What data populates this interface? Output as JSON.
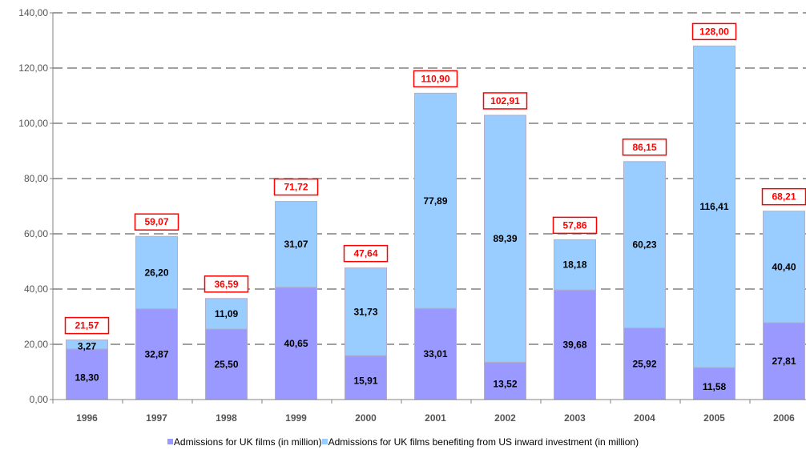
{
  "chart_data": {
    "type": "bar",
    "stacked": true,
    "categories": [
      "1996",
      "1997",
      "1998",
      "1999",
      "2000",
      "2001",
      "2002",
      "2003",
      "2004",
      "2005",
      "2006"
    ],
    "series": [
      {
        "name": "Admissions for UK films (in million)",
        "color": "#9999ff",
        "values": [
          18.3,
          32.87,
          25.5,
          40.65,
          15.91,
          33.01,
          13.52,
          39.68,
          25.92,
          11.58,
          27.81
        ],
        "labels": [
          "18,30",
          "32,87",
          "25,50",
          "40,65",
          "15,91",
          "33,01",
          "13,52",
          "39,68",
          "25,92",
          "11,58",
          "27,81"
        ]
      },
      {
        "name": "Admissions for UK films benefiting from US inward investment (in million)",
        "color": "#99ccff",
        "values": [
          3.27,
          26.2,
          11.09,
          31.07,
          31.73,
          77.89,
          89.39,
          18.18,
          60.23,
          116.41,
          40.4
        ],
        "labels": [
          "3,27",
          "26,20",
          "11,09",
          "31,07",
          "31,73",
          "77,89",
          "89,39",
          "18,18",
          "60,23",
          "116,41",
          "40,40"
        ]
      }
    ],
    "totals": [
      21.57,
      59.07,
      36.59,
      71.72,
      47.64,
      110.9,
      102.91,
      57.86,
      86.15,
      128.0,
      68.21
    ],
    "total_labels": [
      "21,57",
      "59,07",
      "36,59",
      "71,72",
      "47,64",
      "110,90",
      "102,91",
      "57,86",
      "86,15",
      "128,00",
      "68,21"
    ],
    "total_color": "#ff0000",
    "ylim": [
      0,
      140
    ],
    "yticks": [
      0,
      20,
      40,
      60,
      80,
      100,
      120,
      140
    ],
    "ytick_labels": [
      "0,00",
      "20,00",
      "40,00",
      "60,00",
      "80,00",
      "100,00",
      "120,00",
      "140,00"
    ],
    "grid": true,
    "legend_position": "bottom",
    "title": "",
    "xlabel": "",
    "ylabel": ""
  }
}
